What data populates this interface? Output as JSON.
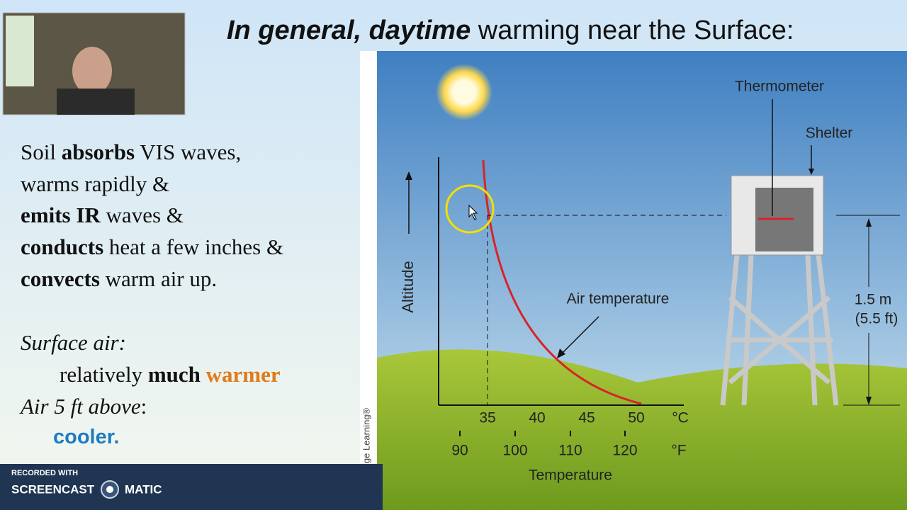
{
  "title": {
    "emphasis": "In general, daytime",
    "rest": " warming near the Surface:"
  },
  "left": {
    "lines": [
      [
        "Soil ",
        "absorbs",
        " VIS waves,"
      ],
      [
        "warms rapidly &"
      ],
      [
        "emits IR",
        " waves &"
      ],
      [
        "conducts",
        " heat a few inches &"
      ],
      [
        "convects",
        " warm air up."
      ]
    ],
    "surface_label": "Surface air:",
    "surface_value": [
      "relatively ",
      "much",
      " warmer"
    ],
    "above_label": [
      "Air 5 ft above",
      ":"
    ],
    "above_value": "cooler."
  },
  "diagram": {
    "thermometer": "Thermometer",
    "shelter": "Shelter",
    "altitude": "Altitude",
    "curve_label": "Air temperature",
    "height_m": "1.5 m",
    "height_ft": "(5.5 ft)",
    "celsius_ticks": [
      35,
      40,
      45,
      50
    ],
    "celsius_unit": "°C",
    "fahrenheit_ticks": [
      90,
      100,
      110,
      120
    ],
    "fahrenheit_unit": "°F",
    "axis_title": "Temperature",
    "credit": "ge Learning®"
  },
  "recorder": {
    "caption": "RECORDED WITH",
    "brand_left": "SCREENCAST",
    "brand_right": "MATIC"
  }
}
